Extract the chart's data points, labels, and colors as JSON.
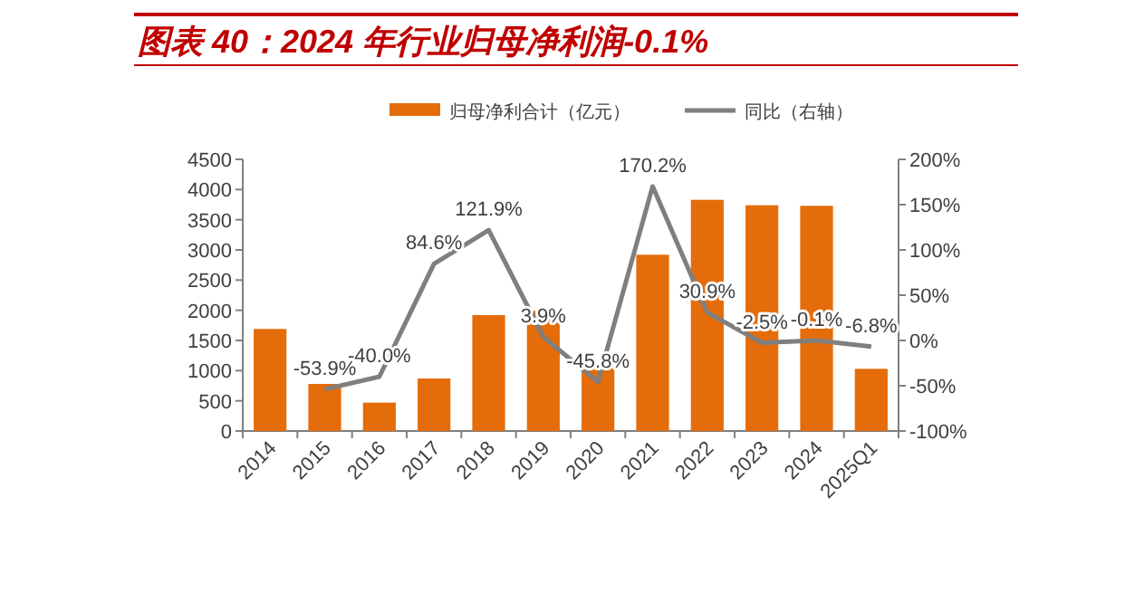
{
  "chart_data": {
    "type": "bar",
    "title": "图表 40：2024 年行业归母净利润-0.1%",
    "categories": [
      "2014",
      "2015",
      "2016",
      "2017",
      "2018",
      "2019",
      "2020",
      "2021",
      "2022",
      "2023",
      "2024",
      "2025Q1"
    ],
    "series": [
      {
        "name": "归母净利合计（亿元）",
        "color": "#e46c0a",
        "values": [
          1690,
          780,
          470,
          870,
          1920,
          1990,
          1090,
          2920,
          3830,
          3740,
          3730,
          1030
        ]
      },
      {
        "name": "同比（右轴）",
        "type": "line",
        "axis": "y2",
        "color": "#7f7f7f",
        "values": [
          null,
          -53.9,
          -40.0,
          84.6,
          121.9,
          3.9,
          -45.8,
          170.2,
          30.9,
          -2.5,
          -0.1,
          -6.8
        ],
        "value_labels": [
          null,
          "-53.9%",
          "-40.0%",
          "84.6%",
          "121.9%",
          "3.9%",
          "-45.8%",
          "170.2%",
          "30.9%",
          "-2.5%",
          "-0.1%",
          "-6.8%"
        ]
      }
    ],
    "ylim": [
      0,
      4500
    ],
    "yticks": [
      0,
      500,
      1000,
      1500,
      2000,
      2500,
      3000,
      3500,
      4000,
      4500
    ],
    "y2lim": [
      -100,
      200
    ],
    "y2ticks": [
      {
        "value": -100,
        "label": "-100%"
      },
      {
        "value": -50,
        "label": "-50%"
      },
      {
        "value": 0,
        "label": "0%"
      },
      {
        "value": 50,
        "label": "50%"
      },
      {
        "value": 100,
        "label": "100%"
      },
      {
        "value": 150,
        "label": "150%"
      },
      {
        "value": 200,
        "label": "200%"
      }
    ],
    "legend": "top",
    "grid": false,
    "marker": "none",
    "line_style": "solid"
  }
}
